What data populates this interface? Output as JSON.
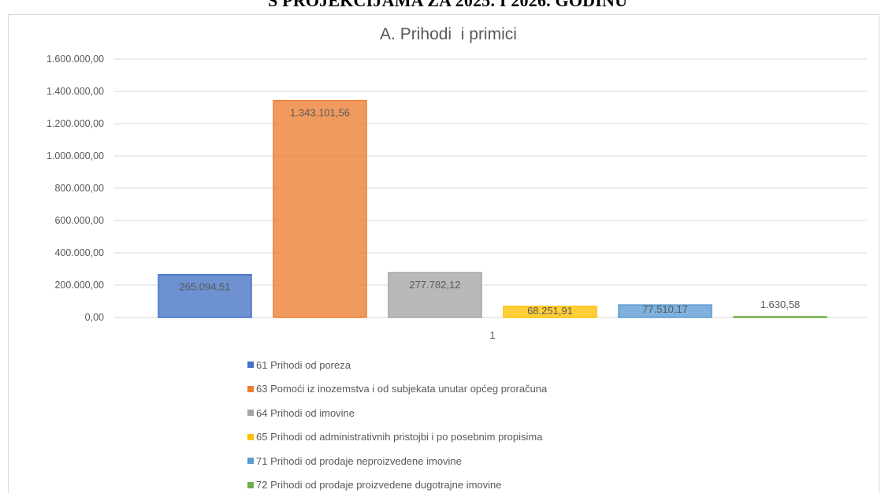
{
  "page": {
    "heading": "S PROJEKCIJAMA ZA 2025. I 2026. GODINU"
  },
  "chart_data": {
    "type": "bar",
    "title": "A. Prihodi  i primici",
    "categories": [
      "1"
    ],
    "ylim": [
      0,
      1600000
    ],
    "yticks": [
      "0,00",
      "200.000,00",
      "400.000,00",
      "600.000,00",
      "800.000,00",
      "1.000.000,00",
      "1.200.000,00",
      "1.400.000,00",
      "1.600.000,00"
    ],
    "grid": true,
    "legend_position": "bottom",
    "series": [
      {
        "name": "61 Prihodi od poreza",
        "value": 265094.51,
        "label": "265.094,51",
        "color": "#4472c4"
      },
      {
        "name": "63 Pomoći iz inozemstva i od subjekata unutar općeg proračuna",
        "value": 1343101.56,
        "label": "1.343.101,56",
        "color": "#ed7d31"
      },
      {
        "name": "64 Prihodi od imovine",
        "value": 277782.12,
        "label": "277.782,12",
        "color": "#a5a5a5"
      },
      {
        "name": "65 Prihodi od administrativnih pristojbi i po posebnim propisima",
        "value": 68251.91,
        "label": "68.251,91",
        "color": "#ffc000"
      },
      {
        "name": "71 Prihodi od prodaje neproizvedene imovine",
        "value": 77510.17,
        "label": "77.510,17",
        "color": "#5b9bd5"
      },
      {
        "name": "72 Prihodi od prodaje proizvedene dugotrajne imovine",
        "value": 1630.58,
        "label": "1.630,58",
        "color": "#70ad47"
      }
    ]
  }
}
